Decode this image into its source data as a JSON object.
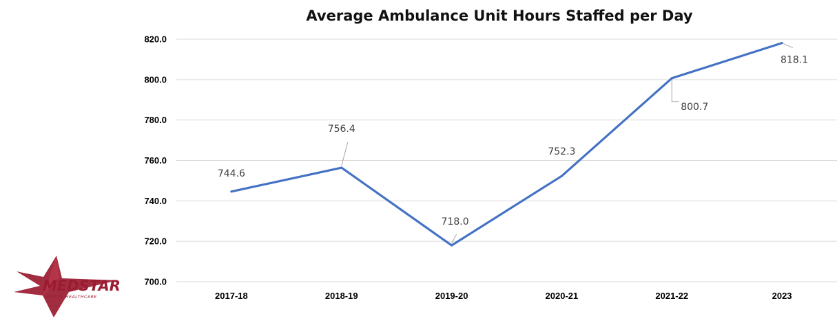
{
  "chart_data": {
    "type": "line",
    "title": "Average Ambulance Unit Hours Staffed per Day",
    "categories": [
      "2017-18",
      "2018-19",
      "2019-20",
      "2020-21",
      "2021-22",
      "2023"
    ],
    "series": [
      {
        "values": [
          744.6,
          756.4,
          718.0,
          752.3,
          800.7,
          818.1
        ],
        "data_labels": [
          "744.6",
          "756.4",
          "718.0",
          "752.3",
          "800.7",
          "818.1"
        ],
        "color": "#4472c4"
      }
    ],
    "ylim": [
      700,
      820
    ],
    "yticks": [
      700,
      720,
      740,
      760,
      780,
      800,
      820
    ],
    "ytick_labels": [
      "700.0",
      "720.0",
      "740.0",
      "760.0",
      "780.0",
      "800.0",
      "820.0"
    ],
    "grid": true,
    "xlabel": "",
    "ylabel": ""
  },
  "logo": {
    "name": "MEDSTAR",
    "subtitle": "MOBILE HEALTHCARE",
    "color": "#9b1b30"
  }
}
